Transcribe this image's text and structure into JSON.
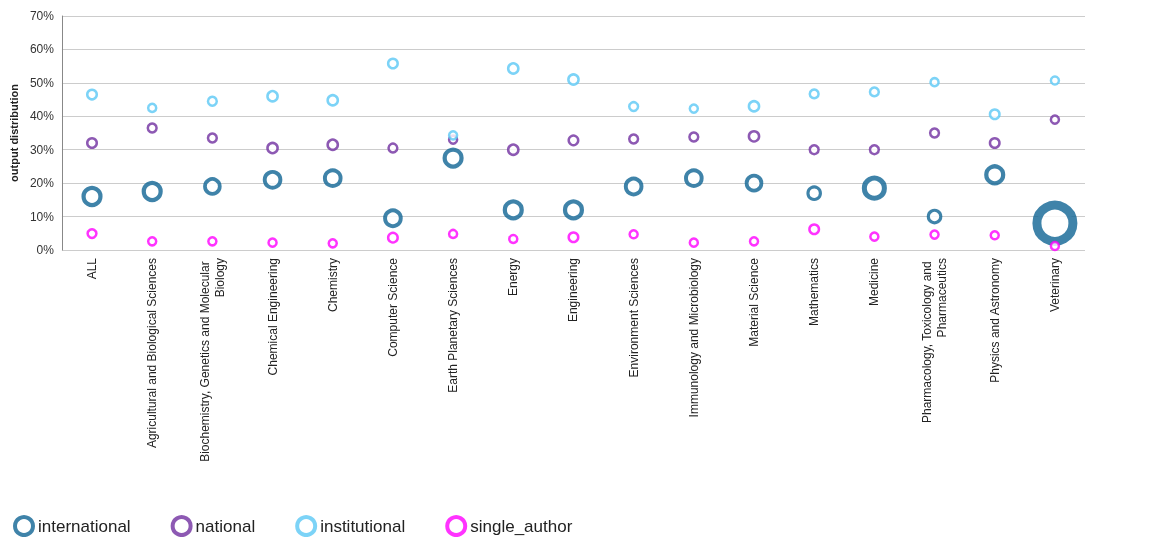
{
  "chart_data": {
    "type": "bubble",
    "ylabel": "output distribution",
    "categories": [
      "ALL",
      "Agricultural and Biological Sciences",
      "Biochemistry, Genetics and Molecular Biology",
      "Chemical Engineering",
      "Chemistry",
      "Computer Science",
      "Earth Planetary Sciences",
      "Energy",
      "Engineering",
      "Environment Sciences",
      "Immunology and Microbiology",
      "Material Science",
      "Mathematics",
      "Medicine",
      "Pharmacology, Toxicology and Pharmaceutics",
      "Physics and Astronomy",
      "Veterinary"
    ],
    "series": [
      {
        "name": "international",
        "color": "#0f6494",
        "values": [
          16,
          17.5,
          19,
          21,
          21.5,
          9.5,
          27.5,
          12,
          12,
          19,
          21.5,
          20,
          17,
          18.5,
          10,
          22.5,
          8
        ],
        "sizes": [
          0.22,
          0.22,
          0.17,
          0.19,
          0.19,
          0.19,
          0.22,
          0.22,
          0.22,
          0.19,
          0.19,
          0.17,
          0.12,
          0.31,
          0.12,
          0.22,
          1
        ]
      },
      {
        "name": "national",
        "color": "#7030a0",
        "values": [
          32,
          36.5,
          33.5,
          30.5,
          31.5,
          30.5,
          33,
          30,
          32.8,
          33.2,
          33.8,
          34,
          30,
          30,
          35,
          32,
          39
        ],
        "sizes": [
          0.07,
          0.06,
          0.06,
          0.08,
          0.08,
          0.06,
          0.05,
          0.08,
          0.07,
          0.06,
          0.06,
          0.08,
          0.06,
          0.06,
          0.06,
          0.07,
          0.05
        ]
      },
      {
        "name": "institutional",
        "color": "#5bc8f5",
        "values": [
          46.5,
          42.5,
          44.5,
          46,
          44.8,
          55.8,
          34.3,
          54.3,
          51,
          42.9,
          42.3,
          43,
          46.7,
          47.3,
          50.2,
          40.6,
          50.7
        ],
        "sizes": [
          0.07,
          0.05,
          0.06,
          0.08,
          0.08,
          0.07,
          0.05,
          0.08,
          0.08,
          0.06,
          0.05,
          0.08,
          0.06,
          0.06,
          0.05,
          0.07,
          0.05
        ]
      },
      {
        "name": "single_author",
        "color": "#ff00ff",
        "values": [
          4.9,
          2.6,
          2.6,
          2.2,
          2.0,
          3.7,
          4.8,
          3.3,
          3.8,
          4.7,
          2.2,
          2.6,
          6.2,
          4,
          4.6,
          4.4,
          1.2
        ],
        "sizes": [
          0.06,
          0.05,
          0.05,
          0.05,
          0.05,
          0.07,
          0.05,
          0.05,
          0.07,
          0.05,
          0.05,
          0.05,
          0.07,
          0.05,
          0.05,
          0.05,
          0.05
        ]
      }
    ],
    "ylim": [
      0,
      70
    ],
    "yticks": [
      {
        "value": 0,
        "label": "0%"
      },
      {
        "value": 10,
        "label": "10%"
      },
      {
        "value": 20,
        "label": "20%"
      },
      {
        "value": 30,
        "label": "30%"
      },
      {
        "value": 40,
        "label": "40%"
      },
      {
        "value": 50,
        "label": "50%"
      },
      {
        "value": 60,
        "label": "60%"
      },
      {
        "value": 70,
        "label": "70%"
      }
    ],
    "grid": "y",
    "legend": "bottom left",
    "marker": "circle"
  }
}
